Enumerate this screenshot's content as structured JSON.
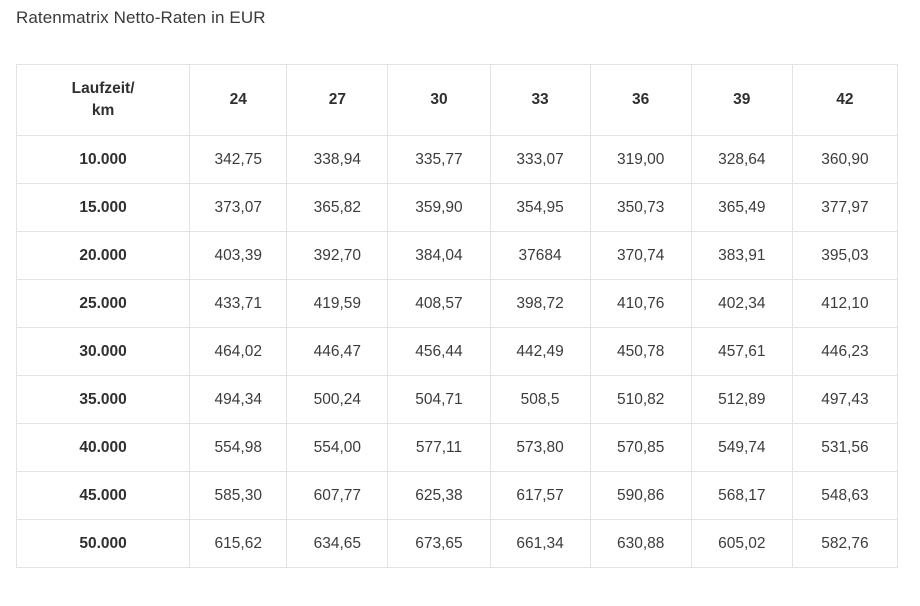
{
  "title": "Ratenmatrix Netto-Raten in EUR",
  "table": {
    "corner_line1": "Laufzeit/",
    "corner_line2": "km",
    "columns": [
      "24",
      "27",
      "30",
      "33",
      "36",
      "39",
      "42"
    ],
    "rows": [
      {
        "km": "10.000",
        "values": [
          "342,75",
          "338,94",
          "335,77",
          "333,07",
          "319,00",
          "328,64",
          "360,90"
        ]
      },
      {
        "km": "15.000",
        "values": [
          "373,07",
          "365,82",
          "359,90",
          "354,95",
          "350,73",
          "365,49",
          "377,97"
        ]
      },
      {
        "km": "20.000",
        "values": [
          "403,39",
          "392,70",
          "384,04",
          "37684",
          "370,74",
          "383,91",
          "395,03"
        ]
      },
      {
        "km": "25.000",
        "values": [
          "433,71",
          "419,59",
          "408,57",
          "398,72",
          "410,76",
          "402,34",
          "412,10"
        ]
      },
      {
        "km": "30.000",
        "values": [
          "464,02",
          "446,47",
          "456,44",
          "442,49",
          "450,78",
          "457,61",
          "446,23"
        ]
      },
      {
        "km": "35.000",
        "values": [
          "494,34",
          "500,24",
          "504,71",
          "508,5",
          "510,82",
          "512,89",
          "497,43"
        ]
      },
      {
        "km": "40.000",
        "values": [
          "554,98",
          "554,00",
          "577,11",
          "573,80",
          "570,85",
          "549,74",
          "531,56"
        ]
      },
      {
        "km": "45.000",
        "values": [
          "585,30",
          "607,77",
          "625,38",
          "617,57",
          "590,86",
          "568,17",
          "548,63"
        ]
      },
      {
        "km": "50.000",
        "values": [
          "615,62",
          "634,65",
          "673,65",
          "661,34",
          "630,88",
          "605,02",
          "582,76"
        ]
      }
    ]
  }
}
